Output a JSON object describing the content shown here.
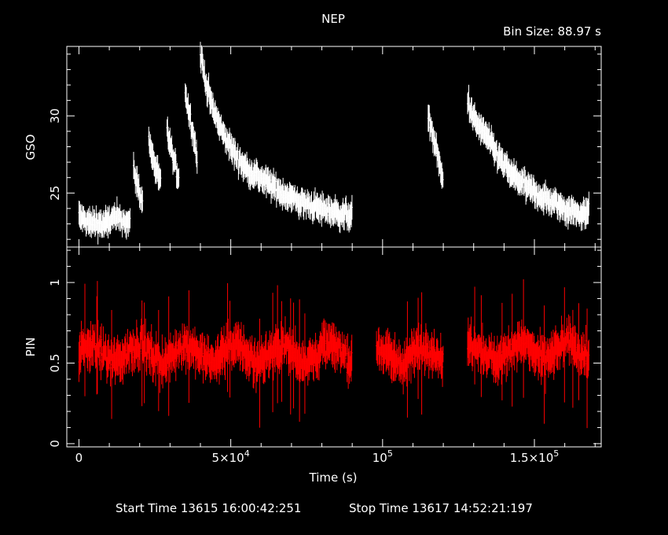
{
  "header": {
    "title": "NEP",
    "bin_size": "Bin Size: 88.97 s"
  },
  "footer": {
    "start_time": "Start Time 13615 16:00:42:251",
    "stop_time": "Stop Time 13617 14:52:21:197"
  },
  "chart_data": [
    {
      "type": "scatter",
      "name": "GSO",
      "ylabel": "GSO",
      "xlim": [
        -4000,
        172000
      ],
      "ylim": [
        21.5,
        34.5
      ],
      "y_ticks": [
        25,
        30
      ],
      "y_tick_labels": [
        "25",
        "30"
      ],
      "color": "#ffffff",
      "error_bars": true,
      "segments": [
        {
          "x_start": 0,
          "x_end": 17000,
          "points": [
            [
              0,
              23.5
            ],
            [
              2000,
              23.2
            ],
            [
              4000,
              23.0
            ],
            [
              6000,
              23.1
            ],
            [
              8000,
              22.9
            ],
            [
              10000,
              23.2
            ],
            [
              12000,
              23.4
            ],
            [
              14000,
              23.3
            ],
            [
              16000,
              23.1
            ]
          ]
        },
        {
          "x_start": 18000,
          "x_end": 21000,
          "points": [
            [
              18000,
              26.5
            ],
            [
              19000,
              25.8
            ],
            [
              20000,
              25.0
            ],
            [
              21000,
              24.4
            ]
          ]
        },
        {
          "x_start": 23000,
          "x_end": 27000,
          "points": [
            [
              23000,
              28.5
            ],
            [
              24000,
              27.5
            ],
            [
              25000,
              26.8
            ],
            [
              26000,
              26.2
            ],
            [
              27000,
              25.5
            ]
          ]
        },
        {
          "x_start": 29000,
          "x_end": 33000,
          "points": [
            [
              29000,
              29.0
            ],
            [
              30000,
              28.2
            ],
            [
              31000,
              27.2
            ],
            [
              32000,
              26.5
            ],
            [
              33000,
              26.0
            ]
          ]
        },
        {
          "x_start": 35000,
          "x_end": 39000,
          "points": [
            [
              35000,
              31.5
            ],
            [
              36000,
              30.5
            ],
            [
              37000,
              29.5
            ],
            [
              38000,
              28.5
            ],
            [
              39000,
              27.0
            ]
          ]
        },
        {
          "x_start": 40000,
          "x_end": 90000,
          "points": [
            [
              40000,
              34.0
            ],
            [
              42000,
              32.0
            ],
            [
              44000,
              30.5
            ],
            [
              46000,
              29.5
            ],
            [
              48000,
              28.6
            ],
            [
              50000,
              28.0
            ],
            [
              52000,
              27.3
            ],
            [
              55000,
              26.6
            ],
            [
              58000,
              26.2
            ],
            [
              61000,
              25.8
            ],
            [
              64000,
              25.4
            ],
            [
              67000,
              25.0
            ],
            [
              70000,
              24.7
            ],
            [
              73000,
              24.4
            ],
            [
              76000,
              24.2
            ],
            [
              79000,
              24.0
            ],
            [
              82000,
              23.9
            ],
            [
              85000,
              23.7
            ],
            [
              88000,
              23.6
            ]
          ]
        },
        {
          "x_start": 115000,
          "x_end": 120000,
          "points": [
            [
              115000,
              30.0
            ],
            [
              116500,
              28.8
            ],
            [
              118000,
              27.5
            ],
            [
              119500,
              26.0
            ]
          ]
        },
        {
          "x_start": 128000,
          "x_end": 168000,
          "points": [
            [
              128000,
              31.0
            ],
            [
              130000,
              29.8
            ],
            [
              132000,
              29.2
            ],
            [
              134000,
              28.8
            ],
            [
              136000,
              28.0
            ],
            [
              138000,
              27.4
            ],
            [
              140000,
              26.8
            ],
            [
              142000,
              26.3
            ],
            [
              145000,
              25.8
            ],
            [
              148000,
              25.3
            ],
            [
              151000,
              24.9
            ],
            [
              154000,
              24.6
            ],
            [
              157000,
              24.3
            ],
            [
              160000,
              24.0
            ],
            [
              163000,
              23.8
            ],
            [
              166000,
              23.6
            ],
            [
              168000,
              24.0
            ]
          ]
        }
      ]
    },
    {
      "type": "scatter",
      "name": "PIN",
      "ylabel": "PIN",
      "xlabel": "Time (s)",
      "xlim": [
        -4000,
        172000
      ],
      "ylim": [
        -0.02,
        1.22
      ],
      "y_ticks": [
        0,
        0.5,
        1
      ],
      "y_tick_labels": [
        "0",
        "0.5",
        "1"
      ],
      "x_ticks": [
        0,
        50000,
        100000,
        150000
      ],
      "color": "#ff0000",
      "error_bars": true,
      "segments": [
        {
          "x_start": 0,
          "x_end": 90000,
          "mean": 0.56
        },
        {
          "x_start": 98000,
          "x_end": 120000,
          "mean": 0.55
        },
        {
          "x_start": 128000,
          "x_end": 168000,
          "mean": 0.57
        }
      ]
    }
  ]
}
